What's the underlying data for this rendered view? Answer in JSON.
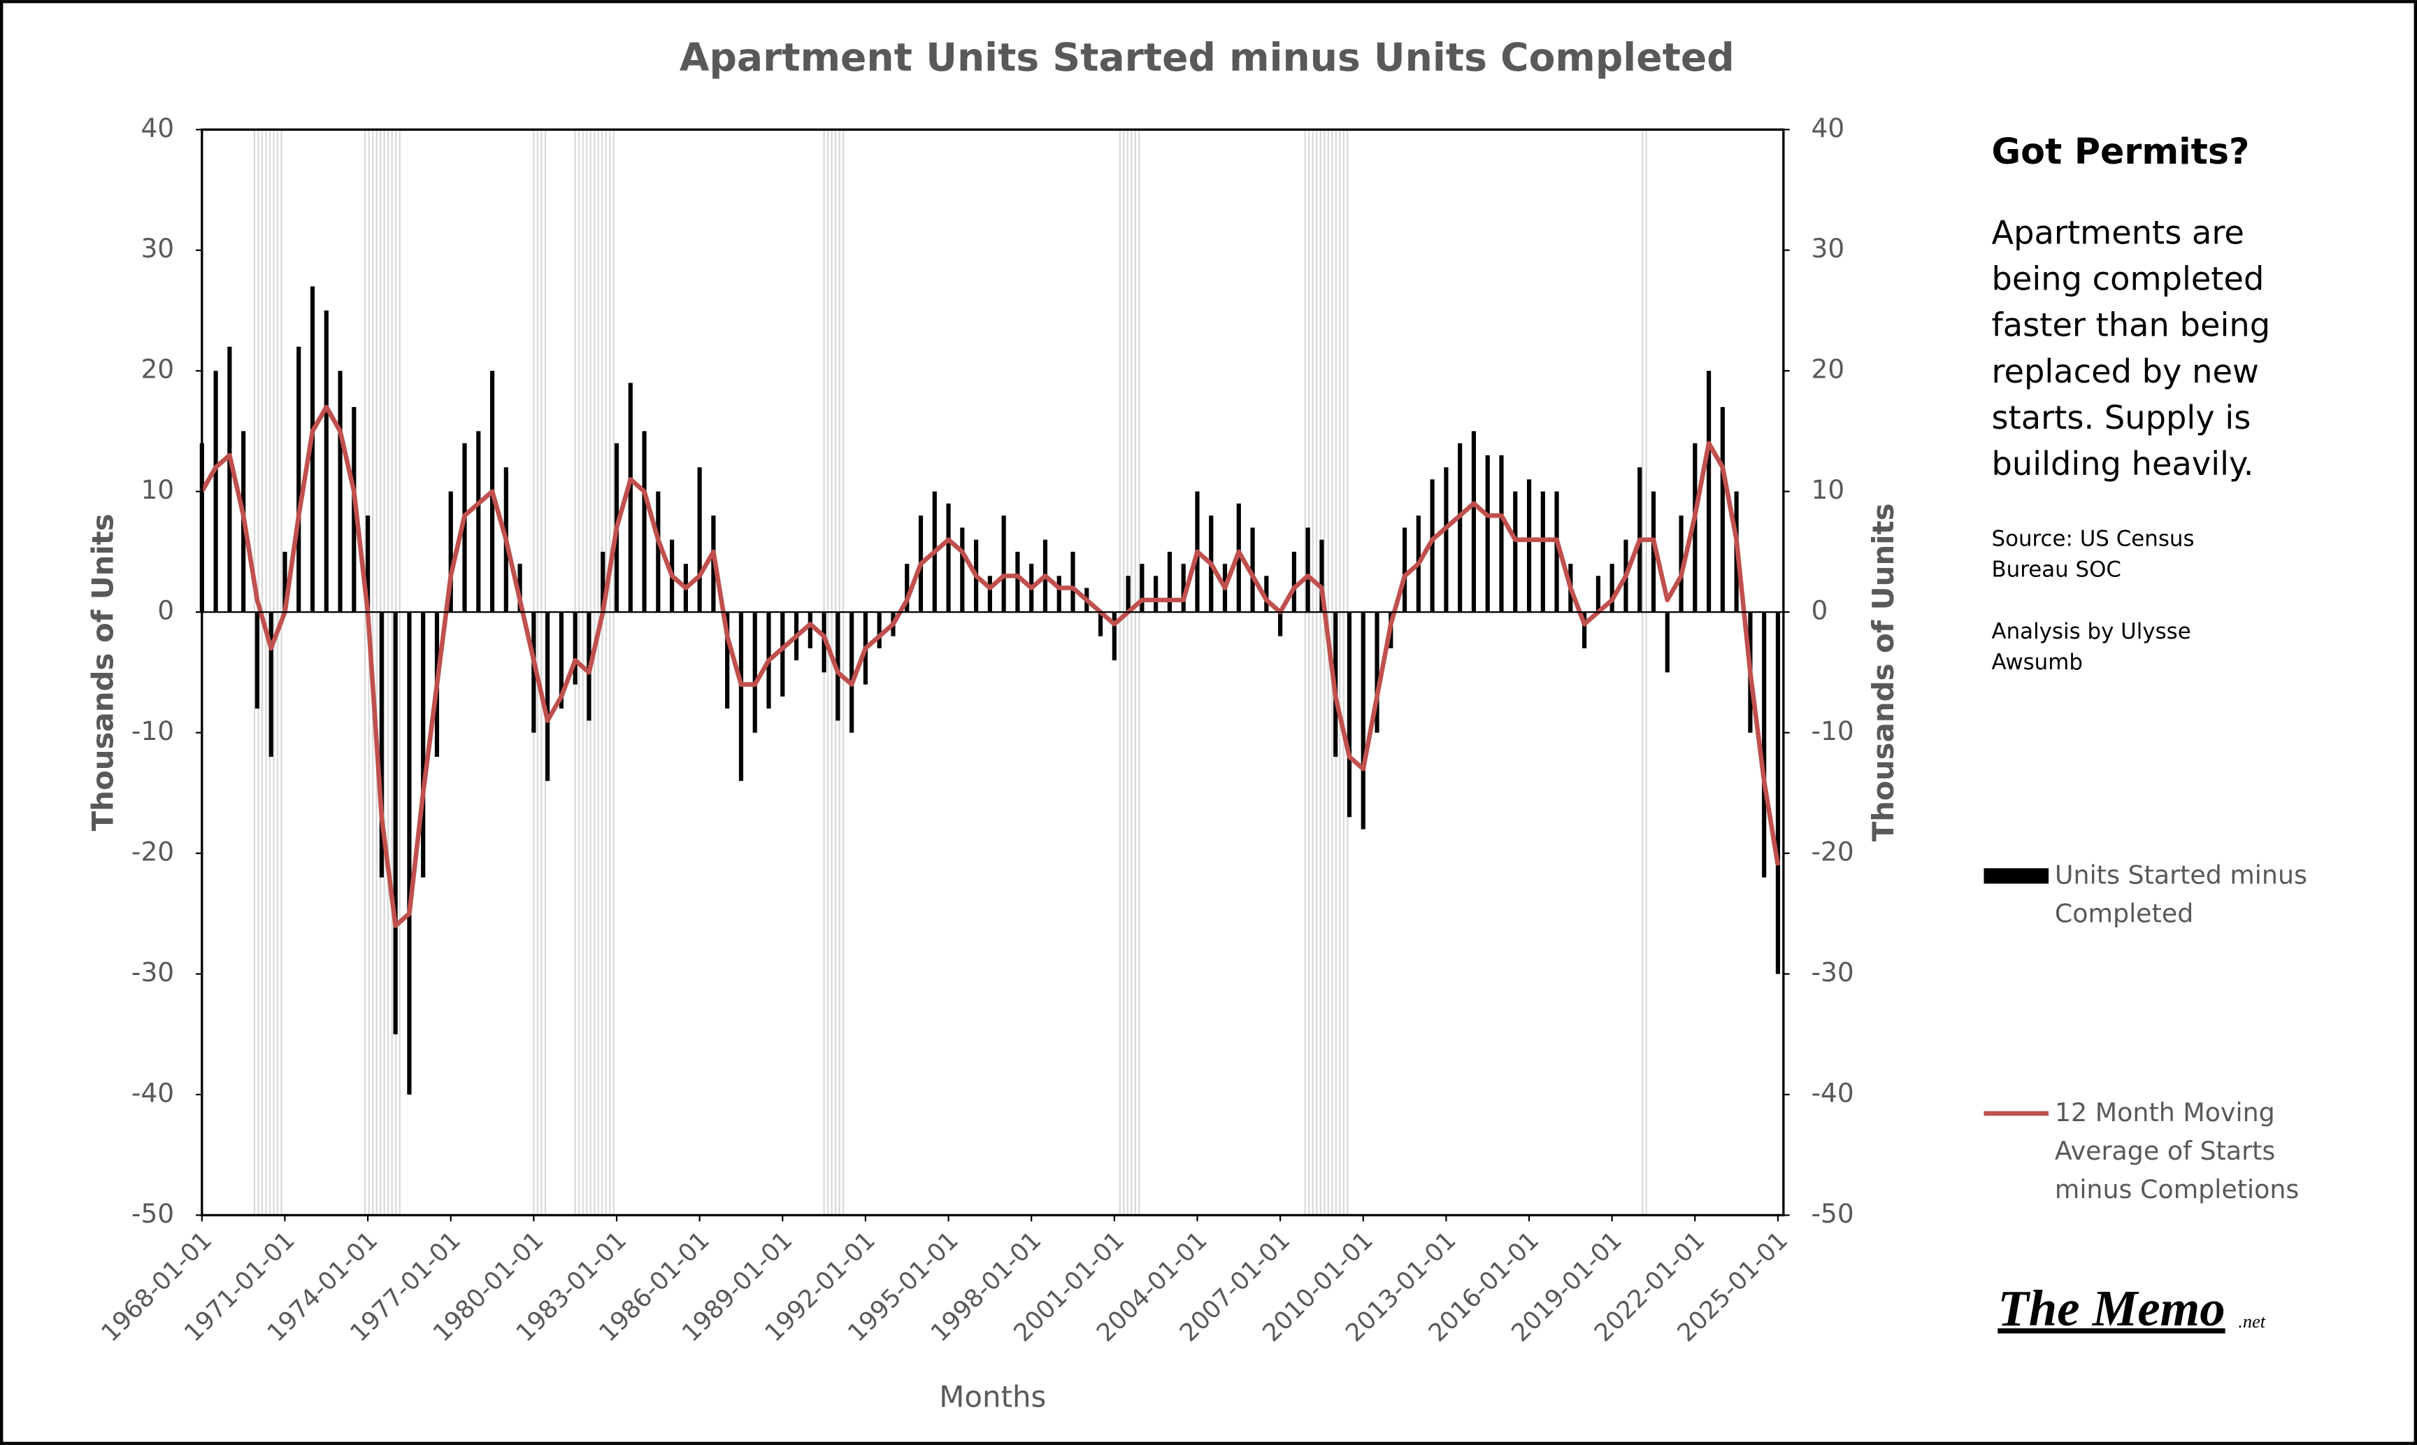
{
  "chart_data": {
    "type": "bar",
    "title": "Apartment Units Started minus Units Completed",
    "x_label": "Months",
    "y_label": "Thousands of Units",
    "y2_label": "Thousands of Uunits",
    "x": [
      1968.0,
      1968.5,
      1969.0,
      1969.5,
      1970.0,
      1970.5,
      1971.0,
      1971.5,
      1972.0,
      1972.5,
      1973.0,
      1973.5,
      1974.0,
      1974.5,
      1975.0,
      1975.5,
      1976.0,
      1976.5,
      1977.0,
      1977.5,
      1978.0,
      1978.5,
      1979.0,
      1979.5,
      1980.0,
      1980.5,
      1981.0,
      1981.5,
      1982.0,
      1982.5,
      1983.0,
      1983.5,
      1984.0,
      1984.5,
      1985.0,
      1985.5,
      1986.0,
      1986.5,
      1987.0,
      1987.5,
      1988.0,
      1988.5,
      1989.0,
      1989.5,
      1990.0,
      1990.5,
      1991.0,
      1991.5,
      1992.0,
      1992.5,
      1993.0,
      1993.5,
      1994.0,
      1994.5,
      1995.0,
      1995.5,
      1996.0,
      1996.5,
      1997.0,
      1997.5,
      1998.0,
      1998.5,
      1999.0,
      1999.5,
      2000.0,
      2000.5,
      2001.0,
      2001.5,
      2002.0,
      2002.5,
      2003.0,
      2003.5,
      2004.0,
      2004.5,
      2005.0,
      2005.5,
      2006.0,
      2006.5,
      2007.0,
      2007.5,
      2008.0,
      2008.5,
      2009.0,
      2009.5,
      2010.0,
      2010.5,
      2011.0,
      2011.5,
      2012.0,
      2012.5,
      2013.0,
      2013.5,
      2014.0,
      2014.5,
      2015.0,
      2015.5,
      2016.0,
      2016.5,
      2017.0,
      2017.5,
      2018.0,
      2018.5,
      2019.0,
      2019.5,
      2020.0,
      2020.5,
      2021.0,
      2021.5,
      2022.0,
      2022.5,
      2023.0,
      2023.5,
      2024.0,
      2024.5,
      2025.0
    ],
    "series": [
      {
        "name": "Units Started minus Completed",
        "color": "#000000",
        "type": "bar",
        "values": [
          14,
          20,
          22,
          15,
          -8,
          -12,
          5,
          22,
          27,
          25,
          20,
          17,
          8,
          -22,
          -35,
          -40,
          -22,
          -12,
          10,
          14,
          15,
          20,
          12,
          4,
          -10,
          -14,
          -8,
          -6,
          -9,
          5,
          14,
          19,
          15,
          10,
          6,
          4,
          12,
          8,
          -8,
          -14,
          -10,
          -8,
          -7,
          -4,
          -3,
          -5,
          -9,
          -10,
          -6,
          -3,
          -2,
          4,
          8,
          10,
          9,
          7,
          6,
          3,
          8,
          5,
          4,
          6,
          3,
          5,
          2,
          -2,
          -4,
          3,
          4,
          3,
          5,
          4,
          10,
          8,
          4,
          9,
          7,
          3,
          -2,
          5,
          7,
          6,
          -12,
          -17,
          -18,
          -10,
          -3,
          7,
          8,
          11,
          12,
          14,
          15,
          13,
          13,
          10,
          11,
          10,
          10,
          4,
          -3,
          3,
          4,
          6,
          12,
          10,
          -5,
          8,
          14,
          20,
          17,
          10,
          -10,
          -22,
          -30
        ]
      },
      {
        "name": "12 Month Moving Average of Starts minus Completions",
        "color": "#c0504d",
        "type": "line",
        "values": [
          10,
          12,
          13,
          8,
          1,
          -3,
          0,
          8,
          15,
          17,
          15,
          10,
          0,
          -17,
          -26,
          -25,
          -15,
          -6,
          3,
          8,
          9,
          10,
          6,
          1,
          -4,
          -9,
          -7,
          -4,
          -5,
          0,
          7,
          11,
          10,
          6,
          3,
          2,
          3,
          5,
          -2,
          -6,
          -6,
          -4,
          -3,
          -2,
          -1,
          -2,
          -5,
          -6,
          -3,
          -2,
          -1,
          1,
          4,
          5,
          6,
          5,
          3,
          2,
          3,
          3,
          2,
          3,
          2,
          2,
          1,
          0,
          -1,
          0,
          1,
          1,
          1,
          1,
          5,
          4,
          2,
          5,
          3,
          1,
          0,
          2,
          3,
          2,
          -7,
          -12,
          -13,
          -7,
          -1,
          3,
          4,
          6,
          7,
          8,
          9,
          8,
          8,
          6,
          6,
          6,
          6,
          2,
          -1,
          0,
          1,
          3,
          6,
          6,
          1,
          3,
          8,
          14,
          12,
          6,
          -5,
          -14,
          -21
        ]
      }
    ],
    "recessions": [
      [
        1969.9,
        1970.9
      ],
      [
        1973.9,
        1975.2
      ],
      [
        1980.0,
        1980.5
      ],
      [
        1981.5,
        1982.9
      ],
      [
        1990.5,
        1991.2
      ],
      [
        2001.2,
        2001.9
      ],
      [
        2007.9,
        2009.5
      ],
      [
        2020.1,
        2020.3
      ]
    ],
    "xlim": [
      1968,
      2025.2
    ],
    "xticks": [
      {
        "value": 1968,
        "label": "1968-01-01"
      },
      {
        "value": 1971,
        "label": "1971-01-01"
      },
      {
        "value": 1974,
        "label": "1974-01-01"
      },
      {
        "value": 1977,
        "label": "1977-01-01"
      },
      {
        "value": 1980,
        "label": "1980-01-01"
      },
      {
        "value": 1983,
        "label": "1983-01-01"
      },
      {
        "value": 1986,
        "label": "1986-01-01"
      },
      {
        "value": 1989,
        "label": "1989-01-01"
      },
      {
        "value": 1992,
        "label": "1992-01-01"
      },
      {
        "value": 1995,
        "label": "1995-01-01"
      },
      {
        "value": 1998,
        "label": "1998-01-01"
      },
      {
        "value": 2001,
        "label": "2001-01-01"
      },
      {
        "value": 2004,
        "label": "2004-01-01"
      },
      {
        "value": 2007,
        "label": "2007-01-01"
      },
      {
        "value": 2010,
        "label": "2010-01-01"
      },
      {
        "value": 2013,
        "label": "2013-01-01"
      },
      {
        "value": 2016,
        "label": "2016-01-01"
      },
      {
        "value": 2019,
        "label": "2019-01-01"
      },
      {
        "value": 2022,
        "label": "2022-01-01"
      },
      {
        "value": 2025,
        "label": "2025-01-01"
      }
    ],
    "ylim": [
      -50,
      40
    ],
    "yticks": [
      -50,
      -40,
      -30,
      -20,
      -10,
      0,
      10,
      20,
      30,
      40
    ],
    "y2lim": [
      -50,
      40
    ],
    "y2ticks": [
      -50,
      -40,
      -30,
      -20,
      -10,
      0,
      10,
      20,
      30,
      40
    ],
    "grid": false
  },
  "side_panel": {
    "heading": "Got Permits?",
    "text": "Apartments are being completed faster than being replaced by new starts. Supply is building heavily.",
    "source": "Source: US Census Bureau SOC",
    "analysis": "Analysis by Ulysse Awsumb"
  },
  "brand": {
    "name": "The Memo",
    "suffix": ".net"
  }
}
